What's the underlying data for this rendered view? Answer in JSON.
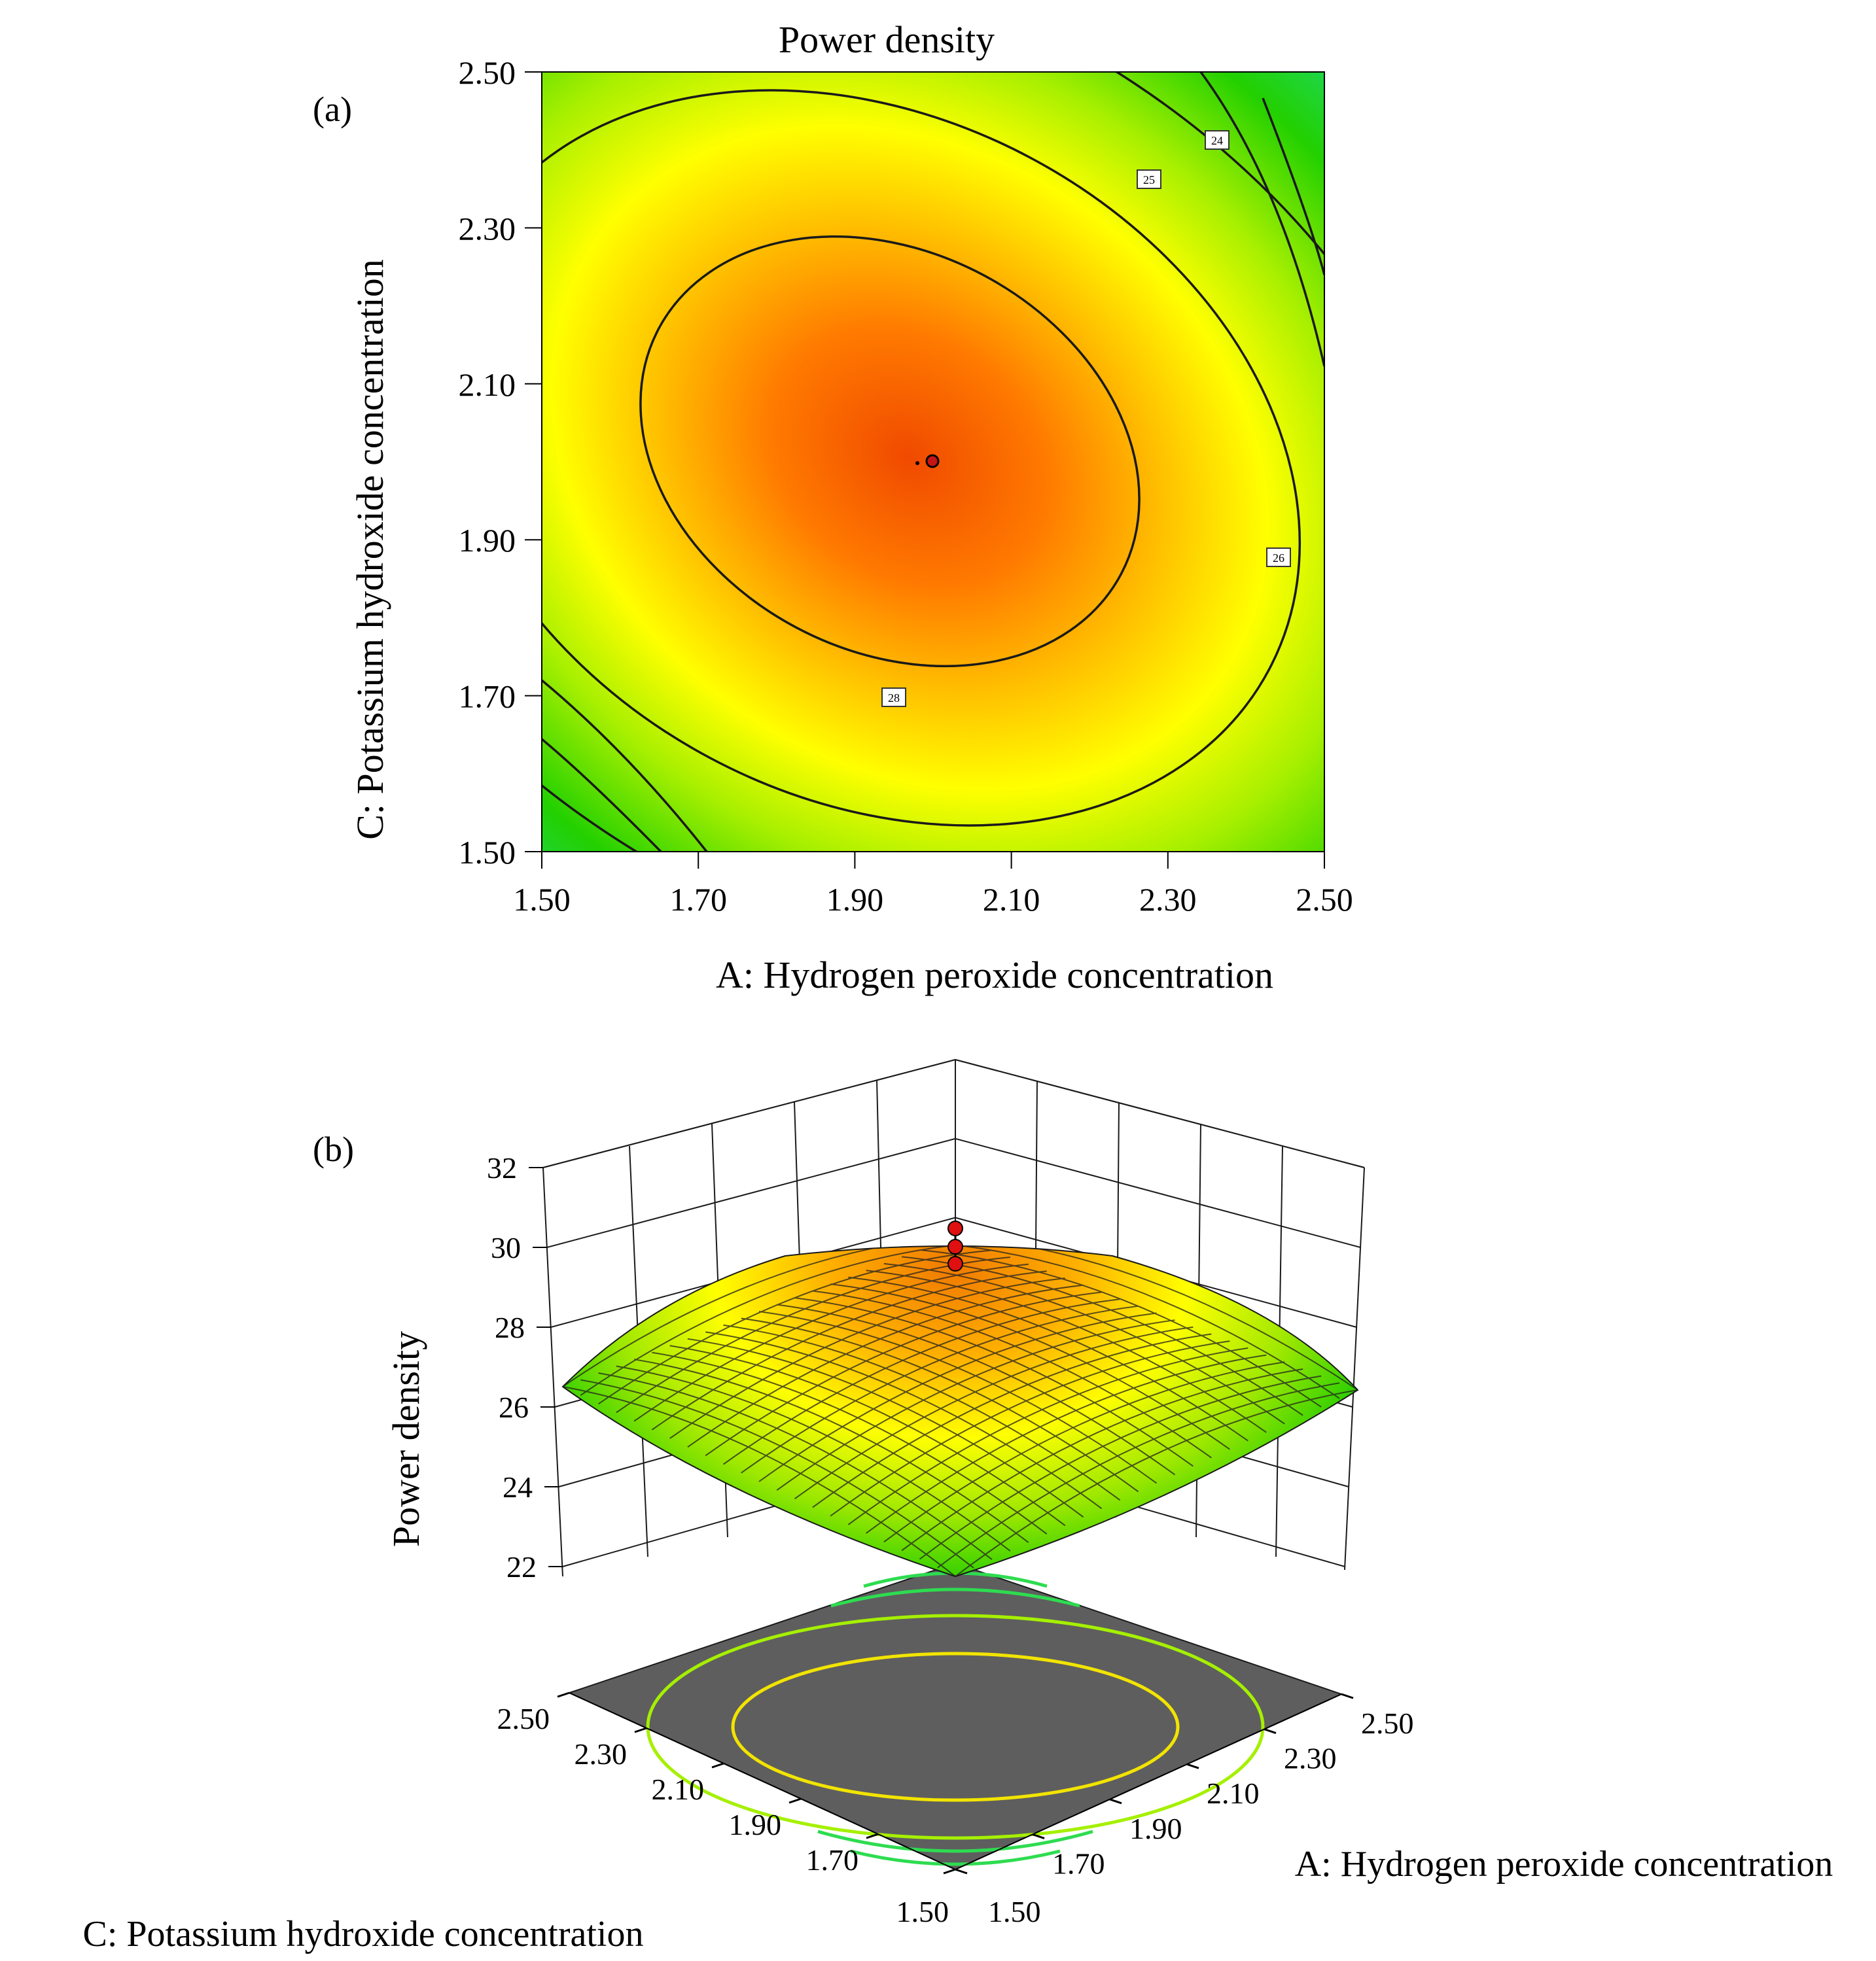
{
  "chart_data": [
    {
      "panel_label": "(a)",
      "type": "contour",
      "title": "Power density",
      "xlabel": "A: Hydrogen peroxide concentration",
      "ylabel": "C: Potassium hydroxide concentration",
      "xlim": [
        1.5,
        2.5
      ],
      "ylim": [
        1.5,
        2.5
      ],
      "xticks": [
        "1.50",
        "1.70",
        "1.90",
        "2.10",
        "2.30",
        "2.50"
      ],
      "yticks": [
        "1.50",
        "1.70",
        "1.90",
        "2.10",
        "2.30",
        "2.50"
      ],
      "optimum_point": {
        "x": 2.0,
        "y": 2.0
      },
      "contour_levels": [
        {
          "value": 28,
          "label": "28"
        },
        {
          "value": 26,
          "label": "26"
        },
        {
          "value": 25,
          "label": "25"
        },
        {
          "value": 24,
          "label": "24"
        }
      ]
    },
    {
      "panel_label": "(b)",
      "type": "surface3d",
      "zlabel": "Power density",
      "xlabel": "A: Hydrogen peroxide concentration",
      "ylabel": "C: Potassium hydroxide concentration",
      "zticks": [
        "22",
        "24",
        "26",
        "28",
        "30",
        "32"
      ],
      "zlim": [
        22,
        32
      ],
      "xticks": [
        "1.50",
        "1.70",
        "1.90",
        "2.10",
        "2.30",
        "2.50"
      ],
      "yticks": [
        "1.50",
        "1.70",
        "1.90",
        "2.10",
        "2.30",
        "2.50"
      ],
      "max_value": 29.0,
      "design_points": [
        30.2,
        29.8,
        29.5
      ]
    }
  ]
}
